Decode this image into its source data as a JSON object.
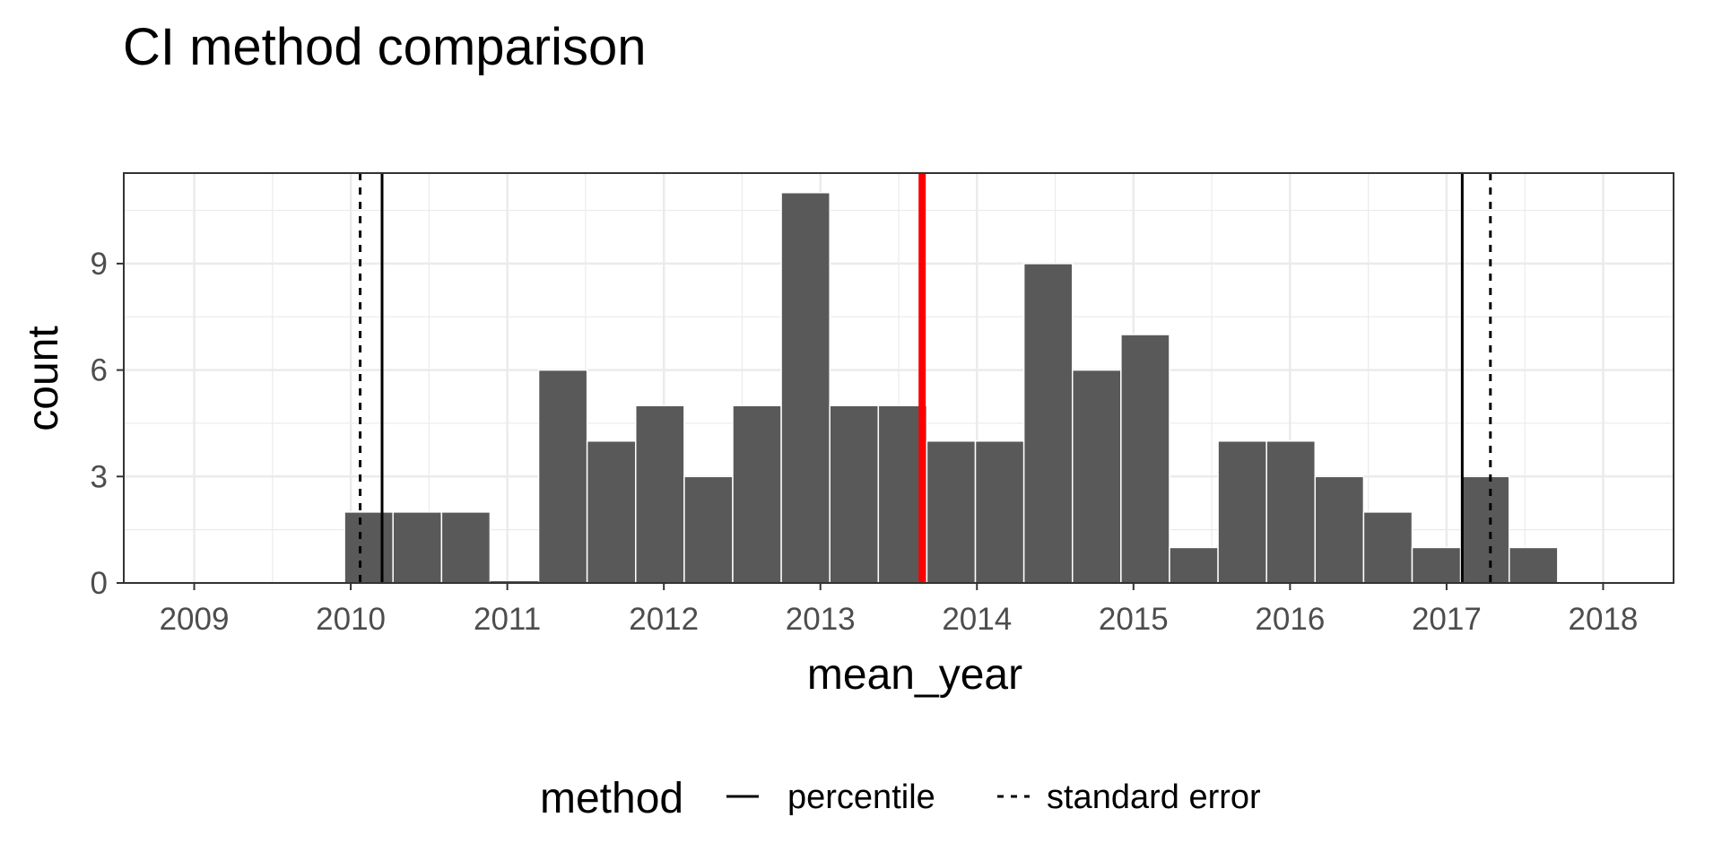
{
  "chart_data": {
    "type": "bar",
    "title": "CI method comparison",
    "xlabel": "mean_year",
    "ylabel": "count",
    "xlim": [
      2008.55,
      2018.45
    ],
    "ylim": [
      0,
      11.55
    ],
    "x_ticks": [
      2009,
      2010,
      2011,
      2012,
      2013,
      2014,
      2015,
      2016,
      2017,
      2018
    ],
    "y_ticks": [
      0,
      3,
      6,
      9
    ],
    "grid": true,
    "bar_color": "#595959",
    "bins": [
      {
        "x0": 2009.96,
        "x1": 2010.27,
        "count": 2
      },
      {
        "x0": 2010.27,
        "x1": 2010.58,
        "count": 2
      },
      {
        "x0": 2010.58,
        "x1": 2010.89,
        "count": 2
      },
      {
        "x0": 2010.89,
        "x1": 2011.2,
        "count": 0
      },
      {
        "x0": 2011.2,
        "x1": 2011.51,
        "count": 6
      },
      {
        "x0": 2011.51,
        "x1": 2011.82,
        "count": 4
      },
      {
        "x0": 2011.82,
        "x1": 2012.13,
        "count": 5
      },
      {
        "x0": 2012.13,
        "x1": 2012.44,
        "count": 3
      },
      {
        "x0": 2012.44,
        "x1": 2012.75,
        "count": 5
      },
      {
        "x0": 2012.75,
        "x1": 2013.06,
        "count": 11
      },
      {
        "x0": 2013.06,
        "x1": 2013.37,
        "count": 5
      },
      {
        "x0": 2013.37,
        "x1": 2013.68,
        "count": 5
      },
      {
        "x0": 2013.68,
        "x1": 2013.99,
        "count": 4
      },
      {
        "x0": 2013.99,
        "x1": 2014.3,
        "count": 4
      },
      {
        "x0": 2014.3,
        "x1": 2014.61,
        "count": 9
      },
      {
        "x0": 2014.61,
        "x1": 2014.92,
        "count": 6
      },
      {
        "x0": 2014.92,
        "x1": 2015.23,
        "count": 7
      },
      {
        "x0": 2015.23,
        "x1": 2015.54,
        "count": 1
      },
      {
        "x0": 2015.54,
        "x1": 2015.85,
        "count": 4
      },
      {
        "x0": 2015.85,
        "x1": 2016.16,
        "count": 4
      },
      {
        "x0": 2016.16,
        "x1": 2016.47,
        "count": 3
      },
      {
        "x0": 2016.47,
        "x1": 2016.78,
        "count": 2
      },
      {
        "x0": 2016.78,
        "x1": 2017.09,
        "count": 1
      },
      {
        "x0": 2017.09,
        "x1": 2017.4,
        "count": 3
      },
      {
        "x0": 2017.4,
        "x1": 2017.71,
        "count": 1
      }
    ],
    "vlines": [
      {
        "x": 2013.65,
        "color": "#ff0000",
        "style": "solid",
        "role": "point estimate"
      },
      {
        "x": 2010.2,
        "color": "#000000",
        "style": "solid",
        "method": "percentile"
      },
      {
        "x": 2017.1,
        "color": "#000000",
        "style": "solid",
        "method": "percentile"
      },
      {
        "x": 2010.06,
        "color": "#000000",
        "style": "dashed",
        "method": "standard error"
      },
      {
        "x": 2017.28,
        "color": "#000000",
        "style": "dashed",
        "method": "standard error"
      }
    ],
    "legend": {
      "title": "method",
      "position": "bottom",
      "entries": [
        {
          "label": "percentile",
          "style": "solid"
        },
        {
          "label": "standard error",
          "style": "dashed"
        }
      ]
    }
  }
}
